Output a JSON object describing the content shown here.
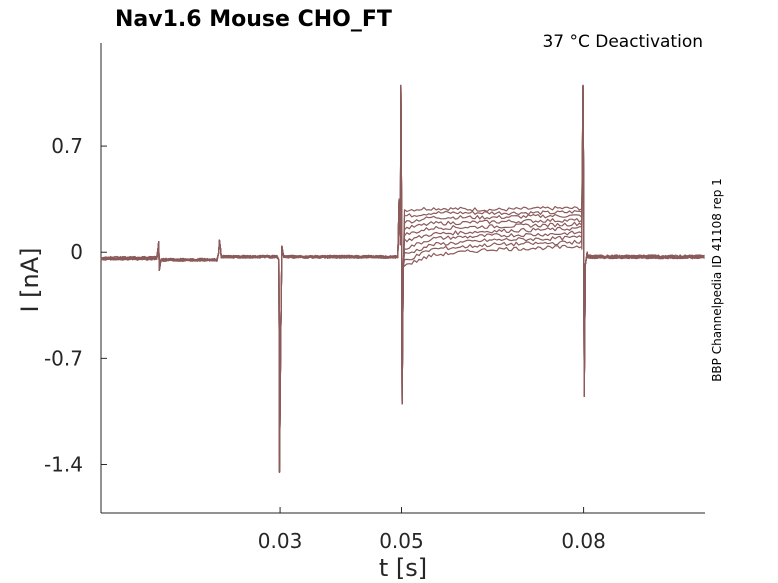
{
  "chart_data": {
    "type": "line",
    "title": "Nav1.6  Mouse  CHO_FT",
    "condition_label": "37 °C  Deactivation",
    "side_label": "BBP Channelpedia ID 41108 rep 1",
    "xlabel": "t [s]",
    "ylabel": "I [nA]",
    "xlim": [
      0.0005,
      0.1
    ],
    "ylim": [
      -1.72,
      1.38
    ],
    "x_ticks": [
      0.03,
      0.05,
      0.08
    ],
    "x_tick_labels": [
      "0.03",
      "0.05",
      "0.08"
    ],
    "y_ticks": [
      0.7,
      0,
      -0.7,
      -1.4
    ],
    "y_tick_labels": [
      "0.7",
      "0",
      "-0.7",
      "-1.4"
    ],
    "grid": false,
    "trace_color": "#8b5a5a",
    "protocol": {
      "artifact_times": [
        0.01,
        0.02,
        0.03,
        0.05,
        0.08
      ],
      "hold_current": -0.04,
      "prepulse_current": -0.03,
      "post_current": -0.03,
      "spike_peak_current": 1.1,
      "negative_spike_current": -1.45,
      "step_negative_artifact_current": -1.0,
      "tail_negative_artifact_current": -0.95,
      "test_pulse_start": 0.05,
      "test_pulse_end": 0.08
    },
    "series": [
      {
        "step_current": 0.29,
        "values_at_x": [
          0.051,
          0.055,
          0.065,
          0.075,
          0.08
        ],
        "values": [
          0.28,
          0.29,
          0.28,
          0.29,
          0.29
        ]
      },
      {
        "step_current": 0.26,
        "values_at_x": [
          0.051,
          0.055,
          0.065,
          0.075,
          0.08
        ],
        "values": [
          0.24,
          0.26,
          0.26,
          0.26,
          0.27
        ]
      },
      {
        "step_current": 0.23,
        "values_at_x": [
          0.051,
          0.055,
          0.065,
          0.075,
          0.08
        ],
        "values": [
          0.2,
          0.23,
          0.23,
          0.24,
          0.24
        ]
      },
      {
        "step_current": 0.2,
        "values_at_x": [
          0.051,
          0.055,
          0.065,
          0.075,
          0.08
        ],
        "values": [
          0.16,
          0.19,
          0.2,
          0.21,
          0.21
        ]
      },
      {
        "step_current": 0.17,
        "values_at_x": [
          0.051,
          0.055,
          0.065,
          0.075,
          0.08
        ],
        "values": [
          0.12,
          0.16,
          0.17,
          0.18,
          0.19
        ]
      },
      {
        "step_current": 0.14,
        "values_at_x": [
          0.051,
          0.055,
          0.065,
          0.075,
          0.08
        ],
        "values": [
          0.08,
          0.12,
          0.14,
          0.15,
          0.16
        ]
      },
      {
        "step_current": 0.11,
        "values_at_x": [
          0.051,
          0.055,
          0.065,
          0.075,
          0.08
        ],
        "values": [
          0.03,
          0.09,
          0.11,
          0.12,
          0.13
        ]
      },
      {
        "step_current": 0.08,
        "values_at_x": [
          0.051,
          0.055,
          0.065,
          0.075,
          0.08
        ],
        "values": [
          -0.01,
          0.05,
          0.08,
          0.09,
          0.1
        ]
      },
      {
        "step_current": 0.05,
        "values_at_x": [
          0.051,
          0.055,
          0.065,
          0.075,
          0.08
        ],
        "values": [
          -0.05,
          0.02,
          0.05,
          0.06,
          0.07
        ]
      },
      {
        "step_current": 0.02,
        "values_at_x": [
          0.051,
          0.055,
          0.065,
          0.075,
          0.08
        ],
        "values": [
          -0.08,
          -0.02,
          0.02,
          0.03,
          0.04
        ]
      }
    ]
  }
}
